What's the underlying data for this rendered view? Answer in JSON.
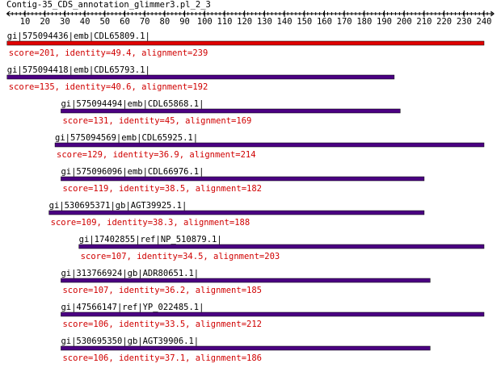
{
  "ruler": {
    "title": "Contig-35_CDS_annotation_glimmer3.pl_2_3",
    "ticks": [
      10,
      20,
      30,
      40,
      50,
      60,
      70,
      80,
      90,
      100,
      110,
      120,
      130,
      140,
      150,
      160,
      170,
      180,
      190,
      200,
      210,
      220,
      230,
      240
    ],
    "range": [
      0,
      245
    ]
  },
  "hits": [
    {
      "name": "gi|575094436|emb|CDL65809.1|",
      "score": "score=201, identity=49.4, alignment=239",
      "start": 1,
      "end": 240,
      "color": "#e00000"
    },
    {
      "name": "gi|575094418|emb|CDL65793.1|",
      "score": "score=135, identity=40.6, alignment=192",
      "start": 1,
      "end": 195,
      "color": "#4b0082"
    },
    {
      "name": "gi|575094494|emb|CDL65868.1|",
      "score": "score=131, identity=45, alignment=169",
      "start": 28,
      "end": 198,
      "color": "#4b0082"
    },
    {
      "name": "gi|575094569|emb|CDL65925.1|",
      "score": "score=129, identity=36.9, alignment=214",
      "start": 25,
      "end": 240,
      "color": "#4b0082"
    },
    {
      "name": "gi|575096096|emb|CDL66976.1|",
      "score": "score=119, identity=38.5, alignment=182",
      "start": 28,
      "end": 210,
      "color": "#4b0082"
    },
    {
      "name": "gi|530695371|gb|AGT39925.1|",
      "score": "score=109, identity=38.3, alignment=188",
      "start": 22,
      "end": 210,
      "color": "#4b0082"
    },
    {
      "name": "gi|17402855|ref|NP_510879.1|",
      "score": "score=107, identity=34.5, alignment=203",
      "start": 37,
      "end": 240,
      "color": "#4b0082"
    },
    {
      "name": "gi|313766924|gb|ADR80651.1|",
      "score": "score=107, identity=36.2, alignment=185",
      "start": 28,
      "end": 213,
      "color": "#4b0082"
    },
    {
      "name": "gi|47566147|ref|YP_022485.1|",
      "score": "score=106, identity=33.5, alignment=212",
      "start": 28,
      "end": 240,
      "color": "#4b0082"
    },
    {
      "name": "gi|530695350|gb|AGT39906.1|",
      "score": "score=106, identity=37.1, alignment=186",
      "start": 28,
      "end": 213,
      "color": "#4b0082"
    }
  ]
}
